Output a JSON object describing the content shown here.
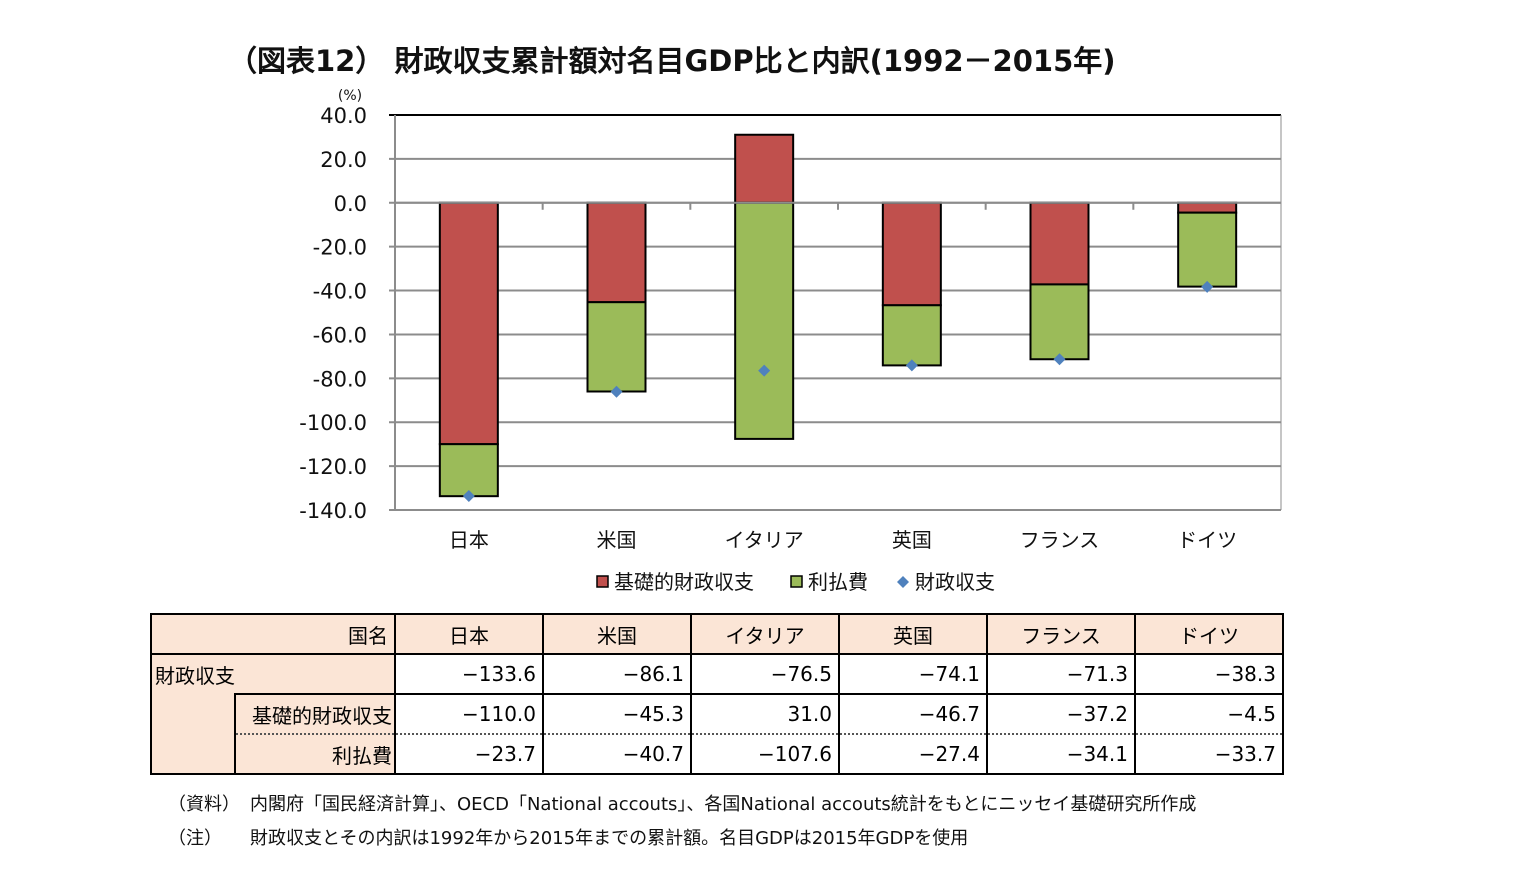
{
  "title": "（図表12） 財政収支累計額対名目GDP比と内訳(1992－2015年)",
  "chart_data": {
    "type": "bar",
    "stacked": true,
    "ylabel": "(%)",
    "ylim": [
      -140,
      40
    ],
    "yticks": [
      "40.0",
      "20.0",
      "0.0",
      "-20.0",
      "-40.0",
      "-60.0",
      "-80.0",
      "-100.0",
      "-120.0",
      "-140.0"
    ],
    "ytick_values": [
      40,
      20,
      0,
      -20,
      -40,
      -60,
      -80,
      -100,
      -120,
      -140
    ],
    "categories": [
      "日本",
      "米国",
      "イタリア",
      "英国",
      "フランス",
      "ドイツ"
    ],
    "series": [
      {
        "name": "基礎的財政収支",
        "type": "bar",
        "color": "#c0504d",
        "values": [
          -110.0,
          -45.3,
          31.0,
          -46.7,
          -37.2,
          -4.5
        ]
      },
      {
        "name": "利払費",
        "type": "bar",
        "color": "#9bbb59",
        "values": [
          -23.7,
          -40.7,
          -107.6,
          -27.4,
          -34.1,
          -33.7
        ]
      },
      {
        "name": "財政収支",
        "type": "scatter",
        "marker": "diamond",
        "color": "#4f81bd",
        "values": [
          -133.6,
          -86.1,
          -76.5,
          -74.1,
          -71.3,
          -38.3
        ]
      }
    ],
    "legend_position": "bottom",
    "grid": true
  },
  "table": {
    "corner": "国名",
    "headers": [
      "日本",
      "米国",
      "イタリア",
      "英国",
      "フランス",
      "ドイツ"
    ],
    "rows": [
      {
        "label": "財政収支",
        "values": [
          "−133.6",
          "−86.1",
          "−76.5",
          "−74.1",
          "−71.3",
          "−38.3"
        ]
      },
      {
        "label": "基礎的財政収支",
        "values": [
          "−110.0",
          "−45.3",
          "31.0",
          "−46.7",
          "−37.2",
          "−4.5"
        ]
      },
      {
        "label": "利払費",
        "values": [
          "−23.7",
          "−40.7",
          "−107.6",
          "−27.4",
          "−34.1",
          "−33.7"
        ]
      }
    ]
  },
  "notes": [
    {
      "key": "（資料）",
      "text": "内閣府「国民経済計算」、OECD「National accouts」、各国National accouts統計をもとにニッセイ基礎研究所作成"
    },
    {
      "key": "（注）",
      "text": "財政収支とその内訳は1992年から2015年までの累計額。名目GDPは2015年GDPを使用"
    }
  ]
}
